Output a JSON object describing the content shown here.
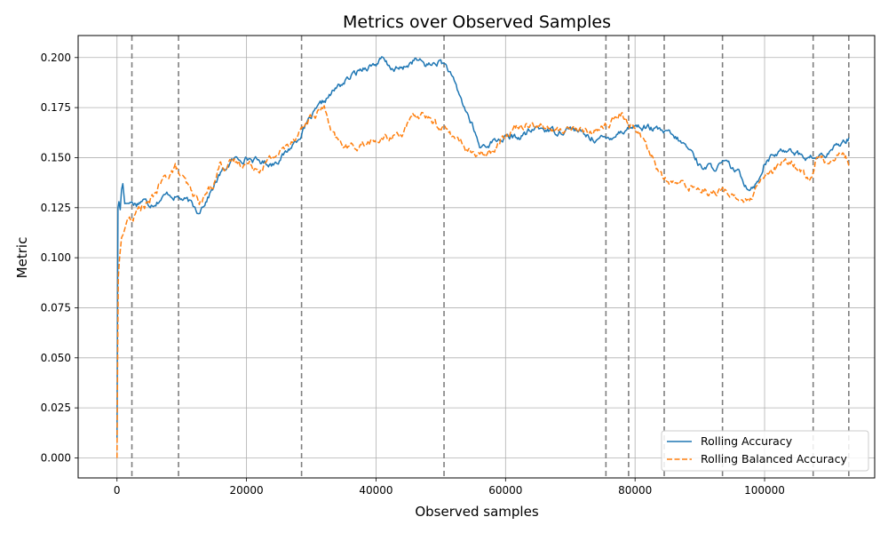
{
  "chart_data": {
    "type": "line",
    "title": "Metrics over Observed Samples",
    "xlabel": "Observed samples",
    "ylabel": "Metric",
    "xlim": [
      -6000,
      117000
    ],
    "ylim": [
      -0.01,
      0.211
    ],
    "x_ticks": [
      0,
      20000,
      40000,
      60000,
      80000,
      100000
    ],
    "x_tick_labels": [
      "0",
      "20000",
      "40000",
      "60000",
      "80000",
      "100000"
    ],
    "y_ticks": [
      0.0,
      0.025,
      0.05,
      0.075,
      0.1,
      0.125,
      0.15,
      0.175,
      0.2
    ],
    "y_tick_labels": [
      "0.000",
      "0.025",
      "0.050",
      "0.075",
      "0.100",
      "0.125",
      "0.150",
      "0.175",
      "0.200"
    ],
    "grid": true,
    "legend_position": "bottom-right",
    "vlines": [
      2300,
      9500,
      28500,
      50500,
      75500,
      79000,
      84500,
      93500,
      107500,
      113000
    ],
    "vline_color": "#7f7f7f",
    "series": [
      {
        "name": "Rolling Accuracy",
        "color": "#1f77b4",
        "style": "solid",
        "noise": 0.0018,
        "points": [
          [
            0,
            0.01
          ],
          [
            150,
            0.125
          ],
          [
            300,
            0.128
          ],
          [
            500,
            0.124
          ],
          [
            700,
            0.134
          ],
          [
            900,
            0.137
          ],
          [
            1200,
            0.127
          ],
          [
            2000,
            0.128
          ],
          [
            3000,
            0.127
          ],
          [
            4000,
            0.129
          ],
          [
            5000,
            0.127
          ],
          [
            6000,
            0.128
          ],
          [
            8000,
            0.132
          ],
          [
            9500,
            0.13
          ],
          [
            11000,
            0.128
          ],
          [
            12500,
            0.123
          ],
          [
            14000,
            0.13
          ],
          [
            16000,
            0.142
          ],
          [
            18000,
            0.149
          ],
          [
            20000,
            0.15
          ],
          [
            22000,
            0.148
          ],
          [
            24000,
            0.147
          ],
          [
            26000,
            0.152
          ],
          [
            28000,
            0.16
          ],
          [
            30000,
            0.17
          ],
          [
            32000,
            0.178
          ],
          [
            34000,
            0.185
          ],
          [
            36000,
            0.19
          ],
          [
            38000,
            0.195
          ],
          [
            40000,
            0.197
          ],
          [
            41000,
            0.199
          ],
          [
            42000,
            0.195
          ],
          [
            44000,
            0.194
          ],
          [
            46000,
            0.199
          ],
          [
            48000,
            0.196
          ],
          [
            50000,
            0.198
          ],
          [
            51000,
            0.195
          ],
          [
            53000,
            0.18
          ],
          [
            55000,
            0.165
          ],
          [
            56000,
            0.155
          ],
          [
            58000,
            0.158
          ],
          [
            60000,
            0.16
          ],
          [
            62000,
            0.16
          ],
          [
            65000,
            0.165
          ],
          [
            68000,
            0.163
          ],
          [
            70000,
            0.165
          ],
          [
            73000,
            0.16
          ],
          [
            75500,
            0.159
          ],
          [
            77000,
            0.162
          ],
          [
            79000,
            0.165
          ],
          [
            80000,
            0.166
          ],
          [
            82000,
            0.165
          ],
          [
            85000,
            0.162
          ],
          [
            87000,
            0.158
          ],
          [
            89000,
            0.152
          ],
          [
            90000,
            0.146
          ],
          [
            92000,
            0.145
          ],
          [
            94000,
            0.147
          ],
          [
            96000,
            0.142
          ],
          [
            97500,
            0.135
          ],
          [
            99000,
            0.138
          ],
          [
            100000,
            0.148
          ],
          [
            102000,
            0.152
          ],
          [
            104000,
            0.155
          ],
          [
            106000,
            0.15
          ],
          [
            108000,
            0.15
          ],
          [
            110000,
            0.152
          ],
          [
            112000,
            0.158
          ],
          [
            113000,
            0.16
          ]
        ]
      },
      {
        "name": "Rolling Balanced Accuracy",
        "color": "#ff7f0e",
        "style": "dashed",
        "noise": 0.0022,
        "points": [
          [
            0,
            0.0
          ],
          [
            100,
            0.05
          ],
          [
            200,
            0.09
          ],
          [
            400,
            0.1
          ],
          [
            700,
            0.11
          ],
          [
            1000,
            0.112
          ],
          [
            1500,
            0.118
          ],
          [
            2500,
            0.12
          ],
          [
            3500,
            0.125
          ],
          [
            5000,
            0.127
          ],
          [
            6000,
            0.133
          ],
          [
            7000,
            0.138
          ],
          [
            8000,
            0.142
          ],
          [
            9000,
            0.145
          ],
          [
            10000,
            0.14
          ],
          [
            11000,
            0.135
          ],
          [
            12000,
            0.13
          ],
          [
            13000,
            0.128
          ],
          [
            14000,
            0.133
          ],
          [
            15000,
            0.138
          ],
          [
            16000,
            0.148
          ],
          [
            17000,
            0.145
          ],
          [
            18000,
            0.148
          ],
          [
            20000,
            0.147
          ],
          [
            22000,
            0.145
          ],
          [
            24000,
            0.15
          ],
          [
            26000,
            0.155
          ],
          [
            28000,
            0.163
          ],
          [
            30000,
            0.17
          ],
          [
            32000,
            0.175
          ],
          [
            32500,
            0.17
          ],
          [
            33000,
            0.162
          ],
          [
            34000,
            0.158
          ],
          [
            36000,
            0.155
          ],
          [
            38000,
            0.157
          ],
          [
            40000,
            0.158
          ],
          [
            42000,
            0.16
          ],
          [
            44000,
            0.163
          ],
          [
            46000,
            0.17
          ],
          [
            47500,
            0.172
          ],
          [
            48500,
            0.168
          ],
          [
            50500,
            0.165
          ],
          [
            52000,
            0.16
          ],
          [
            54000,
            0.155
          ],
          [
            56000,
            0.15
          ],
          [
            58000,
            0.155
          ],
          [
            60000,
            0.162
          ],
          [
            62000,
            0.166
          ],
          [
            64000,
            0.168
          ],
          [
            66000,
            0.165
          ],
          [
            68000,
            0.163
          ],
          [
            70000,
            0.165
          ],
          [
            72000,
            0.163
          ],
          [
            74000,
            0.164
          ],
          [
            76000,
            0.167
          ],
          [
            78000,
            0.171
          ],
          [
            79000,
            0.168
          ],
          [
            80000,
            0.165
          ],
          [
            81500,
            0.158
          ],
          [
            83000,
            0.148
          ],
          [
            84500,
            0.138
          ],
          [
            86000,
            0.137
          ],
          [
            88000,
            0.136
          ],
          [
            90000,
            0.135
          ],
          [
            92000,
            0.133
          ],
          [
            94000,
            0.133
          ],
          [
            96000,
            0.13
          ],
          [
            97500,
            0.127
          ],
          [
            98500,
            0.132
          ],
          [
            100000,
            0.14
          ],
          [
            102000,
            0.145
          ],
          [
            104000,
            0.148
          ],
          [
            106000,
            0.143
          ],
          [
            107000,
            0.138
          ],
          [
            108000,
            0.15
          ],
          [
            110000,
            0.148
          ],
          [
            111500,
            0.153
          ],
          [
            112500,
            0.15
          ],
          [
            113000,
            0.146
          ]
        ]
      }
    ]
  }
}
